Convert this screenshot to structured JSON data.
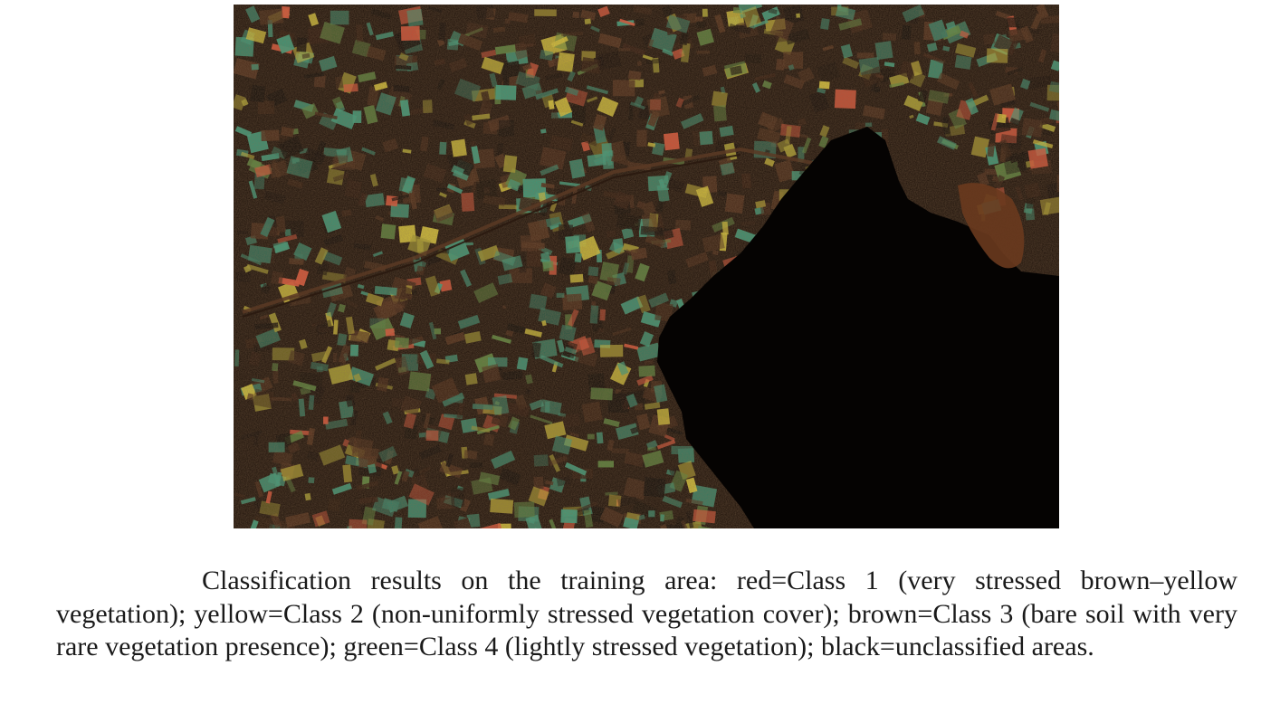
{
  "figure": {
    "image_name": "classification-map",
    "legend": [
      {
        "color_name": "red",
        "label": "Class 1",
        "hex": "#e0553a"
      },
      {
        "color_name": "yellow",
        "label": "Class 2",
        "hex": "#d8c83a"
      },
      {
        "color_name": "brown",
        "label": "Class 3",
        "hex": "#4a2a18"
      },
      {
        "color_name": "green",
        "label": "Class 4",
        "hex": "#3aa080"
      },
      {
        "color_name": "black",
        "label": "unclassified",
        "hex": "#0a0604"
      }
    ]
  },
  "caption": {
    "text": "Classification results on the training area: red=Class 1 (very stressed brown–yellow vegetation); yellow=Class 2 (non-uniformly stressed vegetation cover); brown=Class 3 (bare soil with very rare vegetation presence); green=Class 4 (lightly stressed vegetation); black=unclassified areas."
  }
}
